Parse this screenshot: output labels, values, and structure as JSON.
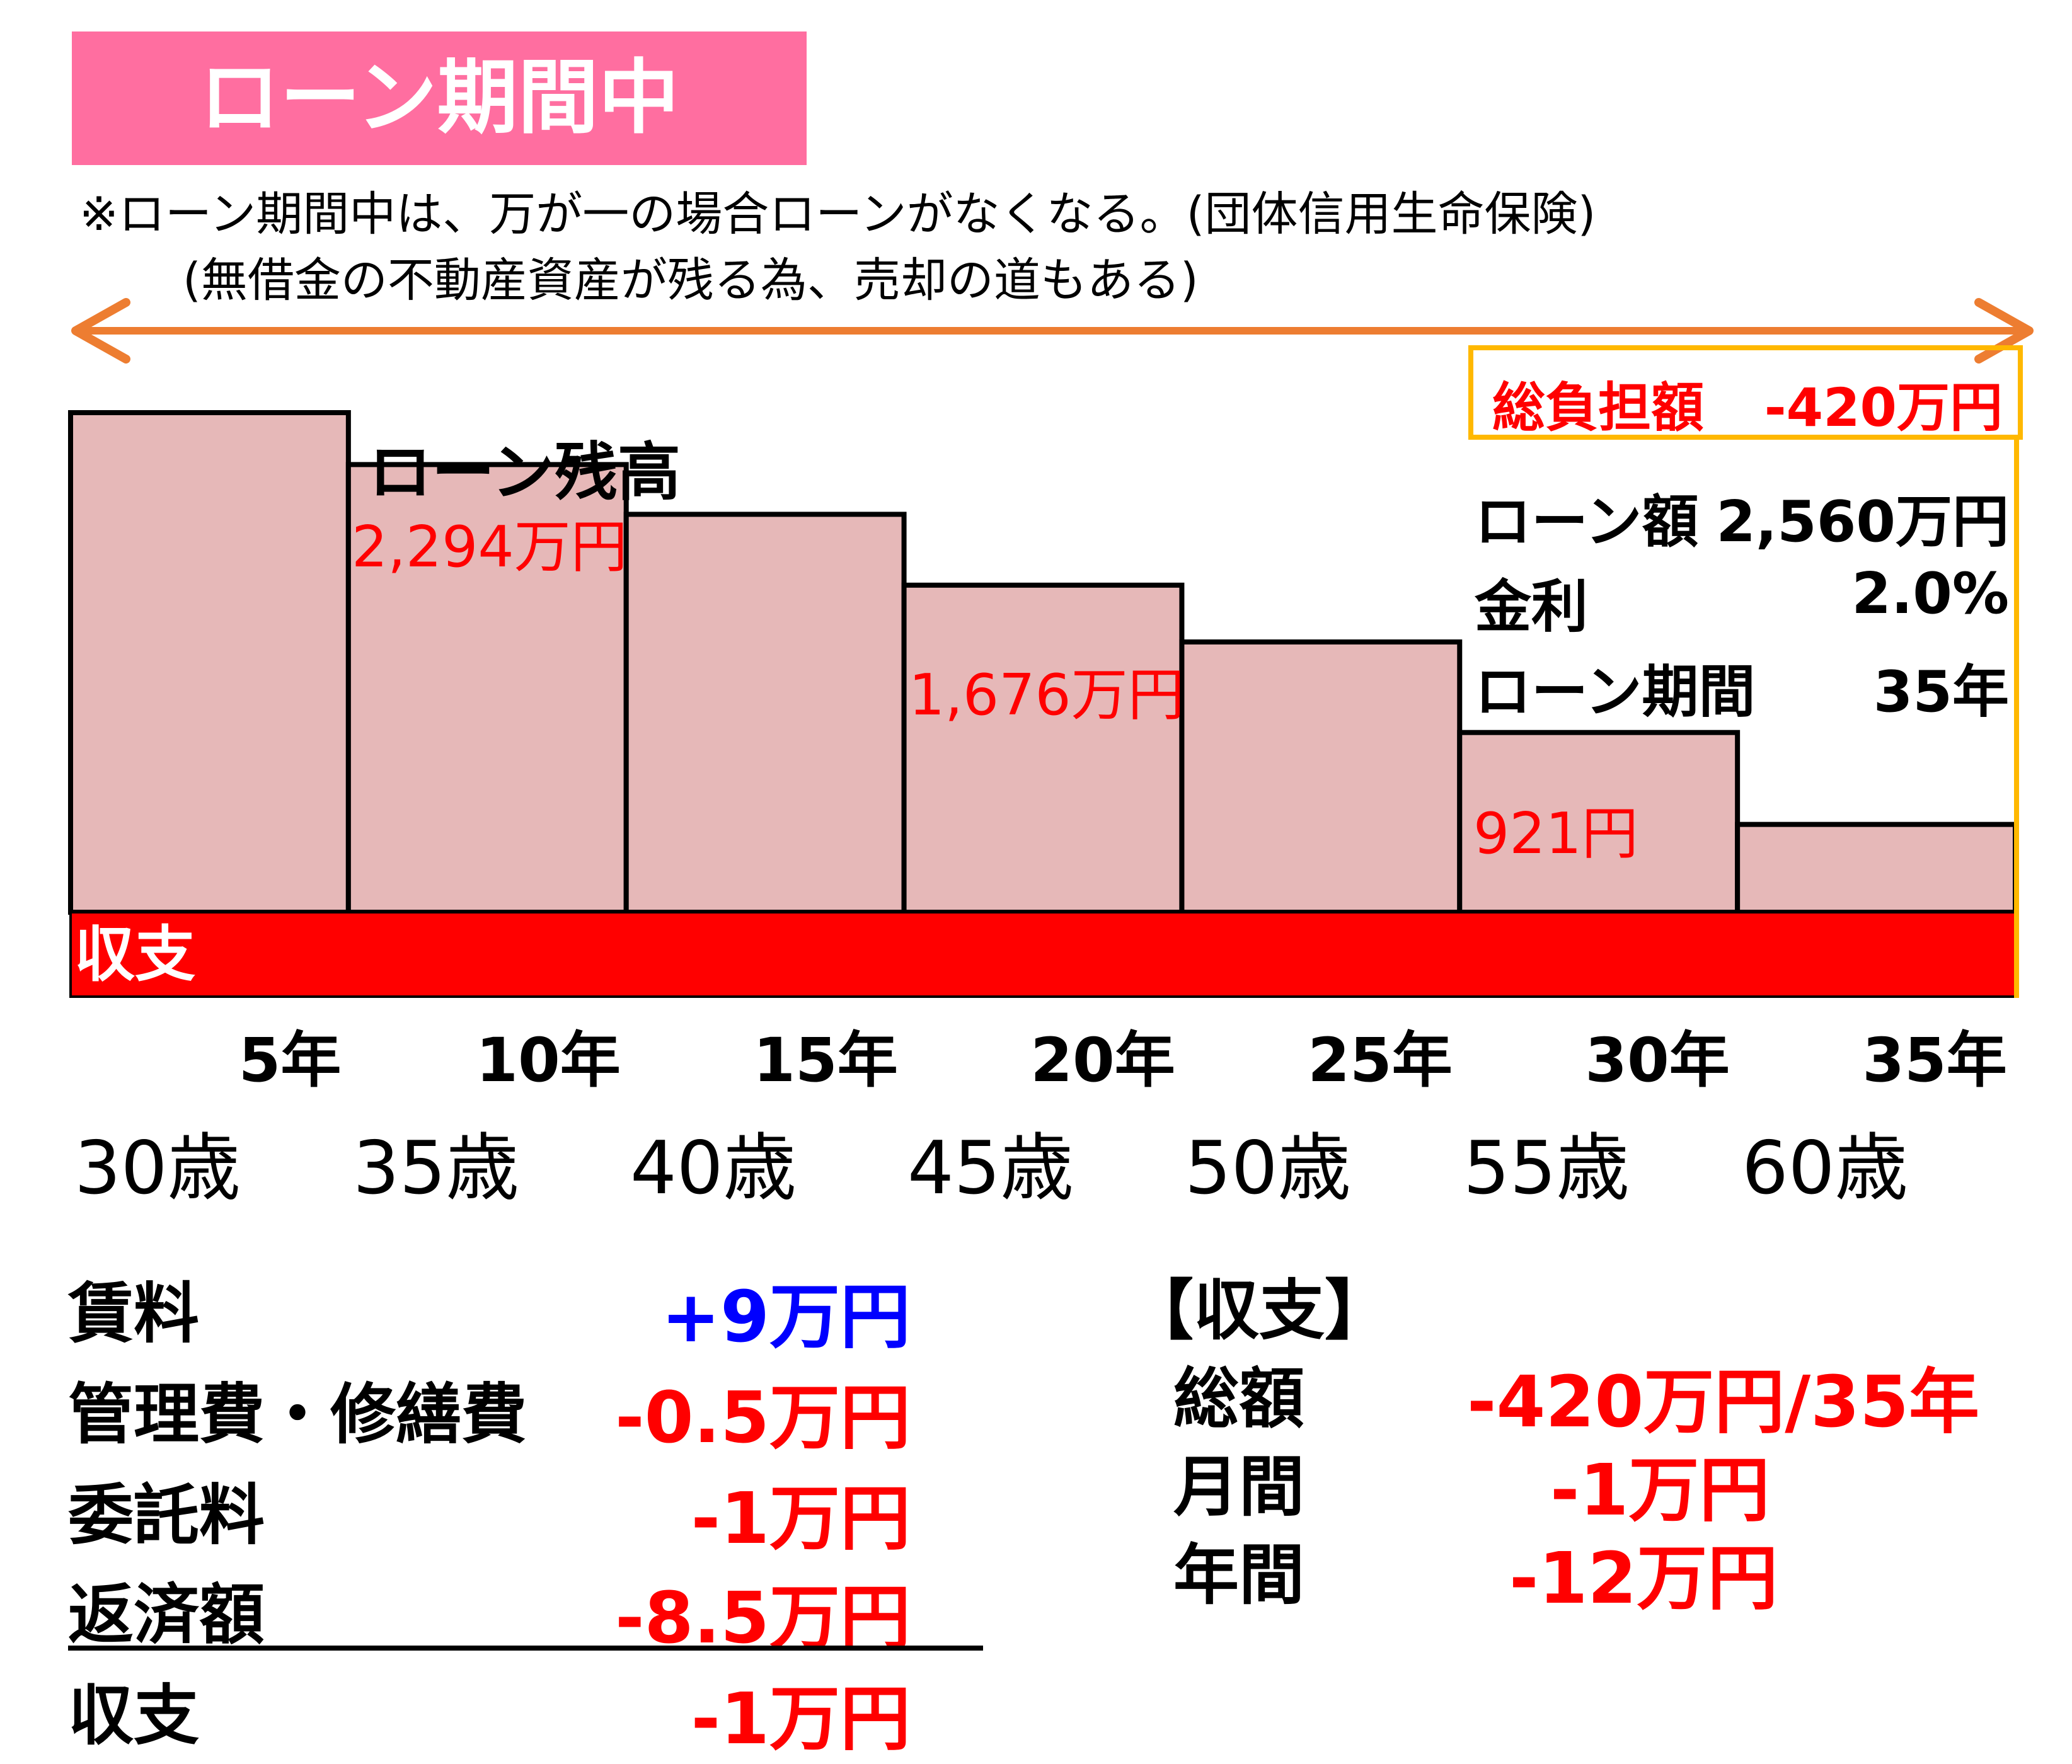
{
  "header": {
    "title": "ローン期間中",
    "note_line1": "※ローン期間中は、万が一の場合ローンがなくなる。(団体信用生命保険)",
    "note_line2": "(無借金の不動産資産が残る為、売却の道もある)"
  },
  "colors": {
    "title_bg": "#ff6ea0",
    "arrow": "#ed7d31",
    "bar_fill": "#e6b8b8",
    "balance_band": "#ff0000",
    "info_border": "#ffb800",
    "negative": "#ff0000",
    "positive": "#0000ff"
  },
  "chart_data": {
    "type": "bar",
    "title": "ローン残高",
    "categories": [
      "5年",
      "10年",
      "15年",
      "20年",
      "25年",
      "30年",
      "35年"
    ],
    "ages": [
      "30歳",
      "35歳",
      "40歳",
      "45歳",
      "50歳",
      "55歳",
      "60歳"
    ],
    "values": [
      2560,
      2294,
      2039,
      1676,
      1385,
      921,
      450
    ],
    "value_labels": [
      "",
      "2,294万円",
      "",
      "1,676万円",
      "",
      "921円",
      ""
    ],
    "ylim": [
      0,
      2560
    ],
    "band_label": "収支"
  },
  "info": {
    "total_label": "総負担額",
    "total_value": "-420万円",
    "loan_label": "ローン額",
    "loan_value": "2,560万円",
    "rate_label": "金利",
    "rate_value": "2.0%",
    "period_label": "ローン期間",
    "period_value": "35年"
  },
  "cashflow": {
    "items": [
      {
        "label": "賃料",
        "value": "+9万円"
      },
      {
        "label": "管理費・修繕費",
        "value": "-0.5万円"
      },
      {
        "label": "委託料",
        "value": "-1万円"
      },
      {
        "label": "返済額",
        "value": "-8.5万円"
      }
    ],
    "total_label": "収支",
    "total_value": "-1万円"
  },
  "summary": {
    "heading": "【収支】",
    "rows": [
      {
        "label": "総額",
        "value": "-420万円/35年"
      },
      {
        "label": "月間",
        "value": "-1万円"
      },
      {
        "label": "年間",
        "value": "-12万円"
      }
    ]
  }
}
